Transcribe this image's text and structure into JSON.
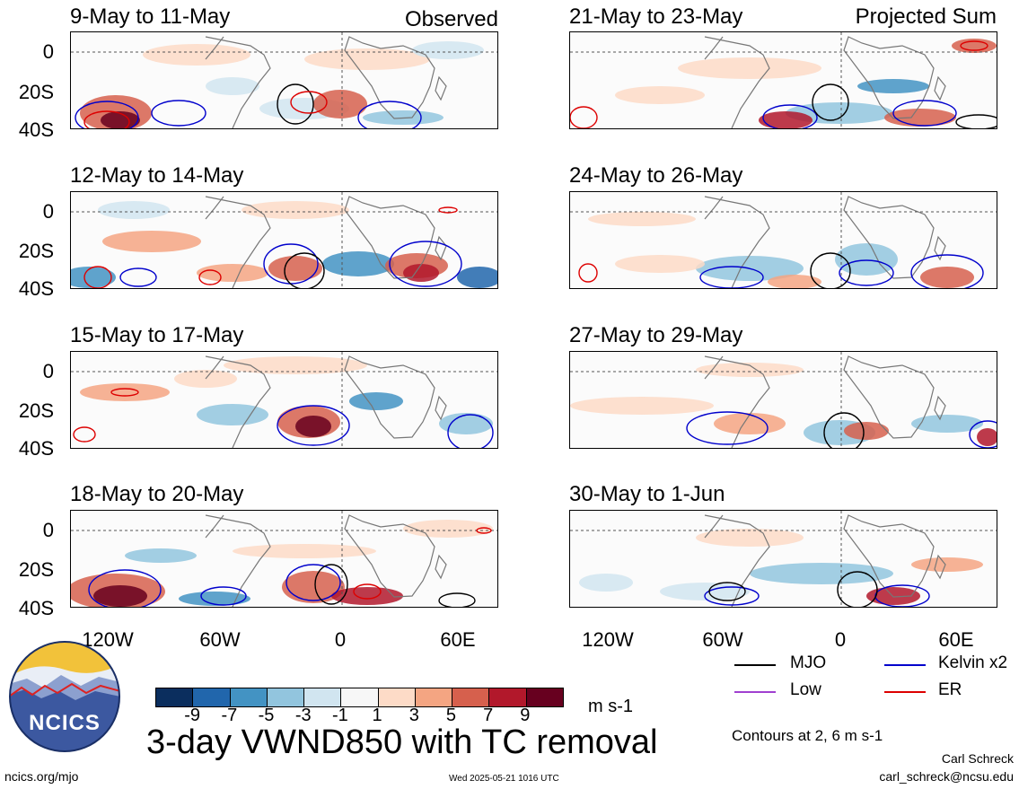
{
  "panels_left": [
    {
      "title": "9-May to 11-May",
      "tag": "Observed"
    },
    {
      "title": "12-May to 14-May",
      "tag": ""
    },
    {
      "title": "15-May to 17-May",
      "tag": ""
    },
    {
      "title": "18-May to 20-May",
      "tag": ""
    }
  ],
  "panels_right": [
    {
      "title": "21-May to 23-May",
      "tag": "Projected Sum"
    },
    {
      "title": "24-May to 26-May",
      "tag": ""
    },
    {
      "title": "27-May to 29-May",
      "tag": ""
    },
    {
      "title": "30-May to 1-Jun",
      "tag": ""
    }
  ],
  "lat_ticks": [
    "0",
    "20S",
    "40S"
  ],
  "lon_ticks": [
    "120W",
    "60W",
    "0",
    "60E"
  ],
  "colorbar": {
    "colors": [
      "#0b2e5e",
      "#2166ac",
      "#4393c3",
      "#92c5de",
      "#d1e5f0",
      "#f7f7f7",
      "#fddbc7",
      "#f4a582",
      "#d6604d",
      "#b2182b",
      "#67001f"
    ],
    "labels": [
      "-9",
      "-7",
      "-5",
      "-3",
      "-1",
      "1",
      "3",
      "5",
      "7",
      "9"
    ],
    "units": "m s-1"
  },
  "legend": {
    "mjo": "MJO",
    "kelvin": "Kelvin x2",
    "low": "Low",
    "er": "ER",
    "colors": {
      "mjo": "#000000",
      "kelvin": "#0000cc",
      "low": "#a040d0",
      "er": "#dd0000"
    },
    "contours_note": "Contours at 2, 6 m s-1"
  },
  "main_title": "3-day VWND850 with TC removal",
  "logo_text": "NCICS",
  "footer": {
    "url": "ncics.org/mjo",
    "timestamp": "Wed 2025-05-21 1016 UTC",
    "author": "Carl Schreck",
    "email": "carl_schreck@ncsu.edu"
  }
}
